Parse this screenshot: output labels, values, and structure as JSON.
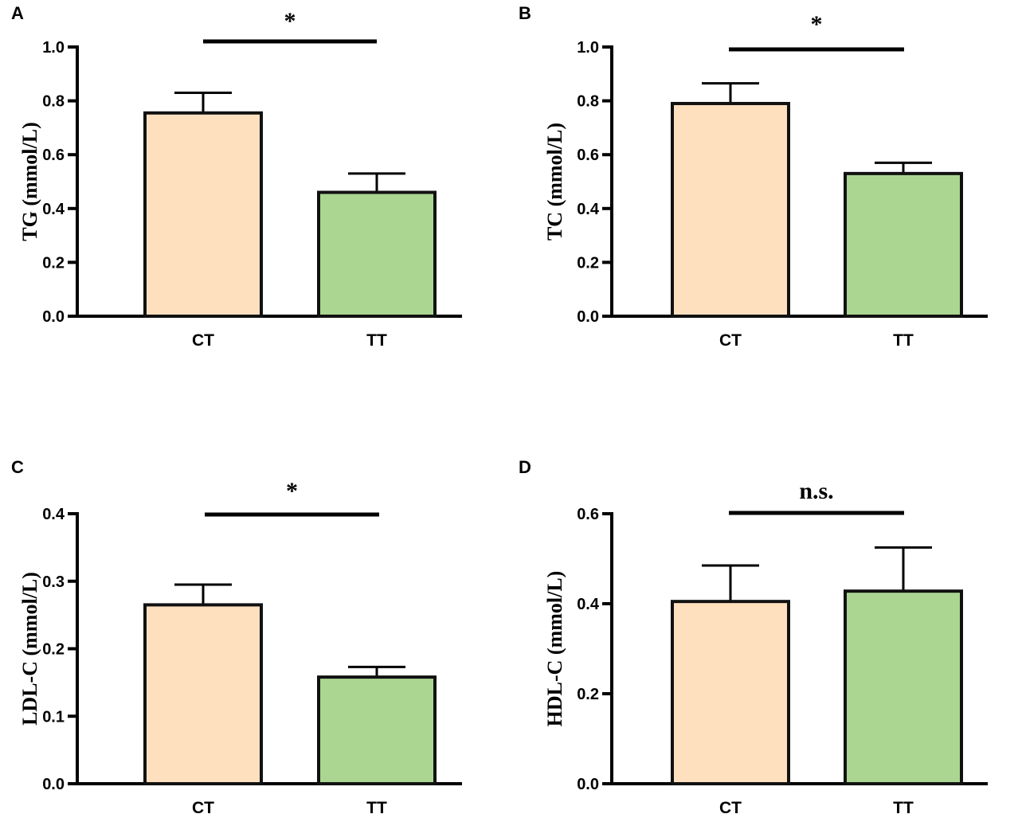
{
  "chart_data": [
    {
      "panel": "A",
      "type": "bar",
      "categories": [
        "CT",
        "TT"
      ],
      "values": [
        0.755,
        0.46
      ],
      "error": [
        0.075,
        0.07
      ],
      "ylabel": "TG (mmol/L)",
      "ylim": [
        0,
        1.0
      ],
      "yticks": [
        "0.0",
        "0.2",
        "0.4",
        "0.6",
        "0.8",
        "1.0"
      ],
      "significance": "*",
      "colors": [
        "#FFE0BE",
        "#AAD691"
      ]
    },
    {
      "panel": "B",
      "type": "bar",
      "categories": [
        "CT",
        "TT"
      ],
      "values": [
        0.79,
        0.53
      ],
      "error": [
        0.075,
        0.04
      ],
      "ylabel": "TC (mmol/L)",
      "ylim": [
        0,
        1.0
      ],
      "yticks": [
        "0.0",
        "0.2",
        "0.4",
        "0.6",
        "0.8",
        "1.0"
      ],
      "significance": "*",
      "colors": [
        "#FFE0BE",
        "#AAD691"
      ]
    },
    {
      "panel": "C",
      "type": "bar",
      "categories": [
        "CT",
        "TT"
      ],
      "values": [
        0.265,
        0.158
      ],
      "error": [
        0.03,
        0.015
      ],
      "ylabel": "LDL-C (mmol/L)",
      "ylim": [
        0,
        0.4
      ],
      "yticks": [
        "0.0",
        "0.1",
        "0.2",
        "0.3",
        "0.4"
      ],
      "significance": "*",
      "colors": [
        "#FFE0BE",
        "#AAD691"
      ]
    },
    {
      "panel": "D",
      "type": "bar",
      "categories": [
        "CT",
        "TT"
      ],
      "values": [
        0.405,
        0.428
      ],
      "error": [
        0.08,
        0.097
      ],
      "ylabel": "HDL-C (mmol/L)",
      "ylim": [
        0,
        0.6
      ],
      "yticks": [
        "0.0",
        "0.2",
        "0.4",
        "0.6"
      ],
      "significance": "n.s.",
      "colors": [
        "#FFE0BE",
        "#AAD691"
      ]
    }
  ]
}
